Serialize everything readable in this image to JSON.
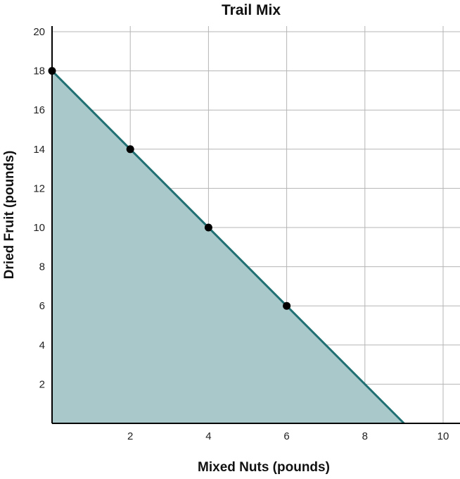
{
  "chart_data": {
    "type": "area",
    "title": "Trail Mix",
    "xlabel": "Mixed Nuts (pounds)",
    "ylabel": "Dried Fruit (pounds)",
    "xlim": [
      0,
      10
    ],
    "ylim": [
      0,
      20
    ],
    "x_ticks": [
      2,
      4,
      6,
      8,
      10
    ],
    "y_ticks": [
      2,
      4,
      6,
      8,
      10,
      12,
      14,
      16,
      18,
      20
    ],
    "grid": true,
    "line": {
      "x": [
        0,
        9
      ],
      "y": [
        18,
        0
      ]
    },
    "points": [
      {
        "x": 0,
        "y": 18
      },
      {
        "x": 2,
        "y": 14
      },
      {
        "x": 4,
        "y": 10
      },
      {
        "x": 6,
        "y": 6
      }
    ],
    "fill_color": "#a9c8c9",
    "line_color": "#1f6f73",
    "point_color": "#000000"
  }
}
